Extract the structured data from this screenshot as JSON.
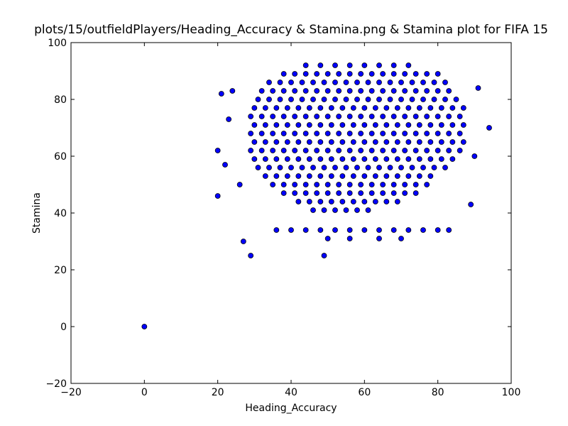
{
  "chart_data": {
    "type": "scatter",
    "title": "plots/15/outfieldPlayers/Heading_Accuracy & Stamina.png & Stamina plot for FIFA 15",
    "x_label": "Heading_Accuracy",
    "y_label": "Stamina",
    "color": "#0000ff",
    "edge_color": "#000000",
    "xlim": [
      -20,
      100
    ],
    "ylim": [
      -20,
      100
    ],
    "xticks": [
      {
        "value": -20,
        "label": "−20"
      },
      0,
      20,
      40,
      60,
      80,
      100
    ],
    "yticks": [
      {
        "value": -20,
        "label": "−20"
      },
      0,
      20,
      40,
      60,
      80,
      100
    ],
    "x": [
      44,
      48,
      52,
      56,
      60,
      64,
      68,
      72,
      38,
      41,
      44,
      47,
      50,
      53,
      56,
      59,
      62,
      65,
      68,
      71,
      74,
      77,
      80,
      34,
      37,
      40,
      43,
      46,
      49,
      52,
      55,
      58,
      61,
      64,
      67,
      70,
      73,
      76,
      79,
      82,
      32,
      35,
      38,
      41,
      44,
      47,
      50,
      53,
      56,
      59,
      62,
      65,
      68,
      71,
      74,
      77,
      80,
      83,
      31,
      34,
      37,
      40,
      43,
      46,
      49,
      52,
      55,
      58,
      61,
      64,
      67,
      70,
      73,
      76,
      79,
      82,
      85,
      30,
      33,
      36,
      39,
      42,
      45,
      48,
      51,
      54,
      57,
      60,
      63,
      66,
      69,
      72,
      75,
      78,
      81,
      84,
      87,
      29,
      32,
      35,
      38,
      41,
      44,
      47,
      50,
      53,
      56,
      59,
      62,
      65,
      68,
      71,
      74,
      77,
      80,
      83,
      86,
      30,
      33,
      36,
      39,
      42,
      45,
      48,
      51,
      54,
      57,
      60,
      63,
      66,
      69,
      72,
      75,
      78,
      81,
      84,
      87,
      29,
      32,
      35,
      38,
      41,
      44,
      47,
      50,
      53,
      56,
      59,
      62,
      65,
      68,
      71,
      74,
      77,
      80,
      83,
      86,
      30,
      33,
      36,
      39,
      42,
      45,
      48,
      51,
      54,
      57,
      60,
      63,
      66,
      69,
      72,
      75,
      78,
      81,
      84,
      87,
      29,
      32,
      35,
      38,
      41,
      44,
      47,
      50,
      53,
      56,
      59,
      62,
      65,
      68,
      71,
      74,
      77,
      80,
      83,
      86,
      30,
      33,
      36,
      39,
      42,
      45,
      48,
      51,
      54,
      57,
      60,
      63,
      66,
      69,
      72,
      75,
      78,
      81,
      84,
      31,
      34,
      37,
      40,
      43,
      46,
      49,
      52,
      55,
      58,
      61,
      64,
      67,
      70,
      73,
      76,
      79,
      82,
      33,
      36,
      39,
      42,
      45,
      48,
      51,
      54,
      57,
      60,
      63,
      66,
      69,
      72,
      75,
      78,
      35,
      38,
      41,
      44,
      47,
      50,
      53,
      56,
      59,
      62,
      65,
      68,
      71,
      74,
      77,
      38,
      41,
      44,
      47,
      50,
      53,
      56,
      59,
      62,
      65,
      68,
      71,
      74,
      42,
      45,
      48,
      51,
      54,
      57,
      60,
      63,
      66,
      69,
      46,
      49,
      52,
      55,
      58,
      61,
      36,
      40,
      44,
      48,
      52,
      56,
      60,
      64,
      68,
      72,
      76,
      80,
      83,
      50,
      56,
      64,
      70,
      0,
      29,
      49,
      20,
      20,
      21,
      24,
      23,
      22,
      27,
      94,
      91,
      89,
      90,
      26
    ],
    "y": [
      92,
      92,
      92,
      92,
      92,
      92,
      92,
      92,
      89,
      89,
      89,
      89,
      89,
      89,
      89,
      89,
      89,
      89,
      89,
      89,
      89,
      89,
      89,
      86,
      86,
      86,
      86,
      86,
      86,
      86,
      86,
      86,
      86,
      86,
      86,
      86,
      86,
      86,
      86,
      86,
      83,
      83,
      83,
      83,
      83,
      83,
      83,
      83,
      83,
      83,
      83,
      83,
      83,
      83,
      83,
      83,
      83,
      83,
      80,
      80,
      80,
      80,
      80,
      80,
      80,
      80,
      80,
      80,
      80,
      80,
      80,
      80,
      80,
      80,
      80,
      80,
      80,
      77,
      77,
      77,
      77,
      77,
      77,
      77,
      77,
      77,
      77,
      77,
      77,
      77,
      77,
      77,
      77,
      77,
      77,
      77,
      77,
      74,
      74,
      74,
      74,
      74,
      74,
      74,
      74,
      74,
      74,
      74,
      74,
      74,
      74,
      74,
      74,
      74,
      74,
      74,
      74,
      71,
      71,
      71,
      71,
      71,
      71,
      71,
      71,
      71,
      71,
      71,
      71,
      71,
      71,
      71,
      71,
      71,
      71,
      71,
      71,
      68,
      68,
      68,
      68,
      68,
      68,
      68,
      68,
      68,
      68,
      68,
      68,
      68,
      68,
      68,
      68,
      68,
      68,
      68,
      68,
      65,
      65,
      65,
      65,
      65,
      65,
      65,
      65,
      65,
      65,
      65,
      65,
      65,
      65,
      65,
      65,
      65,
      65,
      65,
      65,
      62,
      62,
      62,
      62,
      62,
      62,
      62,
      62,
      62,
      62,
      62,
      62,
      62,
      62,
      62,
      62,
      62,
      62,
      62,
      62,
      59,
      59,
      59,
      59,
      59,
      59,
      59,
      59,
      59,
      59,
      59,
      59,
      59,
      59,
      59,
      59,
      59,
      59,
      59,
      56,
      56,
      56,
      56,
      56,
      56,
      56,
      56,
      56,
      56,
      56,
      56,
      56,
      56,
      56,
      56,
      56,
      56,
      53,
      53,
      53,
      53,
      53,
      53,
      53,
      53,
      53,
      53,
      53,
      53,
      53,
      53,
      53,
      53,
      50,
      50,
      50,
      50,
      50,
      50,
      50,
      50,
      50,
      50,
      50,
      50,
      50,
      50,
      50,
      47,
      47,
      47,
      47,
      47,
      47,
      47,
      47,
      47,
      47,
      47,
      47,
      47,
      44,
      44,
      44,
      44,
      44,
      44,
      44,
      44,
      44,
      44,
      41,
      41,
      41,
      41,
      41,
      41,
      34,
      34,
      34,
      34,
      34,
      34,
      34,
      34,
      34,
      34,
      34,
      34,
      34,
      31,
      31,
      31,
      31,
      0,
      25,
      25,
      46,
      62,
      82,
      83,
      73,
      57,
      30,
      70,
      84,
      43,
      60,
      50
    ]
  }
}
